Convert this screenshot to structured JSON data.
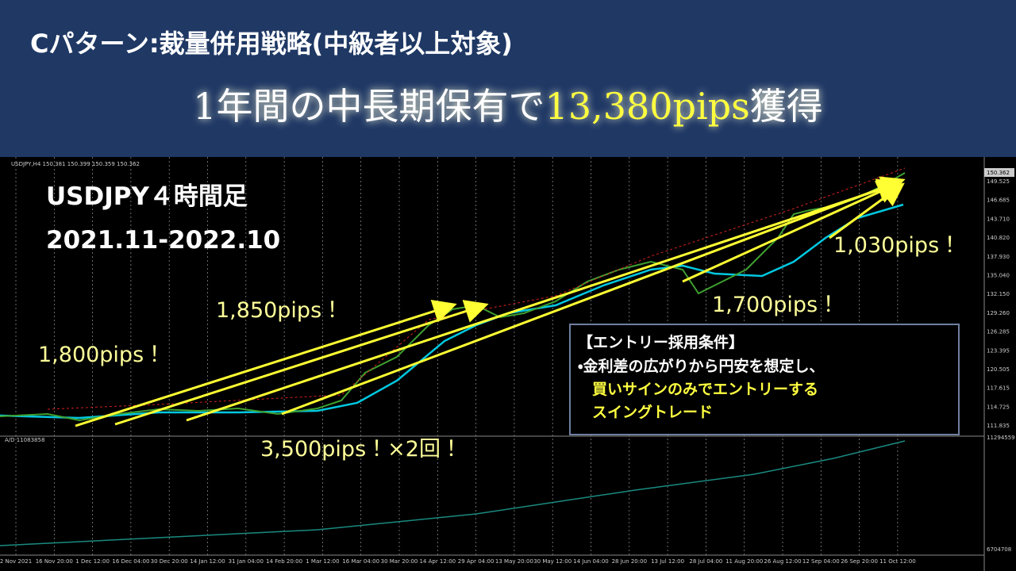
{
  "header": {
    "title": "Cパターン:裁量併用戦略(中級者以上対象)",
    "headline": {
      "before": "1年間の中長期保有で",
      "highlight": "13,380pips",
      "after": "獲得"
    }
  },
  "chart": {
    "info": "USDJPY,H4  150.381 150.399 150.359 150.362",
    "symbol": "USDJPY４時間足",
    "period": "2021.11-2022.10",
    "current_price": "150.362",
    "price_ticks": [
      "149.525",
      "146.685",
      "143.710",
      "140.820",
      "137.930",
      "135.040",
      "132.150",
      "129.260",
      "126.285",
      "123.395",
      "120.505",
      "117.615",
      "114.725",
      "111.835"
    ],
    "indicator_label": "A/D 11083858",
    "indicator_ticks": [
      "11294559",
      "6704708"
    ],
    "time_ticks": [
      "2 Nov 2021",
      "16 Nov 20:00",
      "1 Dec 12:00",
      "16 Dec 04:00",
      "30 Dec 20:00",
      "14 Jan 12:00",
      "31 Jan 04:00",
      "14 Feb 20:00",
      "1 Mar 12:00",
      "16 Mar 04:00",
      "30 Mar 20:00",
      "14 Apr 12:00",
      "29 Apr 04:00",
      "13 May 20:00",
      "30 May 12:00",
      "14 Jun 04:00",
      "28 Jun 20:00",
      "13 Jul 12:00",
      "28 Jul 04:00",
      "11 Aug 20:00",
      "26 Aug 12:00",
      "12 Sep 04:00",
      "26 Sep 20:00",
      "11 Oct 12:00"
    ],
    "annotations": [
      "1,800pips！",
      "1,850pips！",
      "3,500pips！×2回！",
      "1,700pips！",
      "1,030pips！"
    ],
    "conditions": {
      "title": "【エントリー採用条件】",
      "line1": "・金利差の広がりから円安を想定し、",
      "line2": "買いサインのみでエントリーする",
      "line3": "スイングトレード"
    }
  }
}
